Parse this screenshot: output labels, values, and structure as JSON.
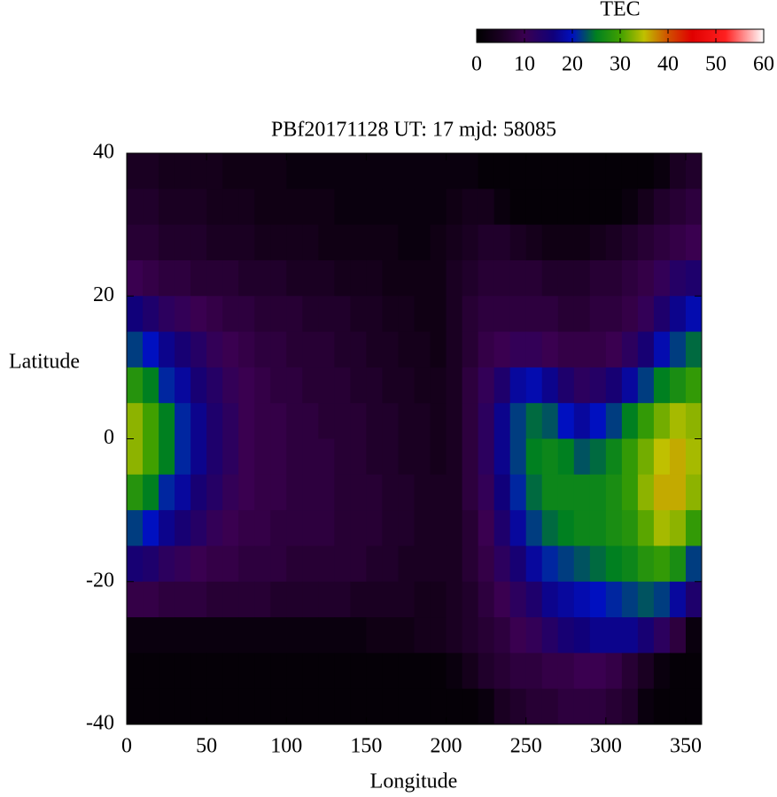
{
  "chart_data": {
    "type": "heatmap",
    "title": "PBf20171128  UT: 17  mjd: 58085",
    "x_label": "Longitude",
    "y_label": "Latitude",
    "colorbar_label": "TEC",
    "xlim": [
      0,
      360
    ],
    "xticks": [
      0,
      50,
      100,
      150,
      200,
      250,
      300,
      350
    ],
    "ylim": [
      -40,
      40
    ],
    "yticks": [
      -40,
      -20,
      0,
      20,
      40
    ],
    "clim": [
      0,
      60
    ],
    "cticks": [
      0,
      10,
      20,
      30,
      40,
      50,
      60
    ],
    "colormap": [
      [
        0,
        "#000000"
      ],
      [
        5,
        "#1a0022"
      ],
      [
        10,
        "#3a0050"
      ],
      [
        16,
        "#10007a"
      ],
      [
        20,
        "#0010c0"
      ],
      [
        25,
        "#008020"
      ],
      [
        30,
        "#40a000"
      ],
      [
        35,
        "#c0c000"
      ],
      [
        40,
        "#d05000"
      ],
      [
        45,
        "#e00000"
      ],
      [
        52,
        "#ff2020"
      ],
      [
        60,
        "#ffffff"
      ]
    ],
    "x": [
      5,
      15,
      25,
      35,
      45,
      55,
      65,
      75,
      85,
      95,
      105,
      115,
      125,
      135,
      145,
      155,
      165,
      175,
      185,
      195,
      205,
      215,
      225,
      235,
      245,
      255,
      265,
      275,
      285,
      295,
      305,
      315,
      325,
      335,
      345,
      355
    ],
    "y": [
      37.5,
      32.5,
      27.5,
      22.5,
      17.5,
      12.5,
      7.5,
      2.5,
      -2.5,
      -7.5,
      -12.5,
      -17.5,
      -22.5,
      -27.5,
      -32.5,
      -37.5
    ],
    "z": [
      [
        5,
        5,
        4,
        4,
        4,
        4,
        3,
        3,
        3,
        3,
        2,
        2,
        2,
        2,
        2,
        2,
        2,
        2,
        2,
        2,
        2,
        2,
        1,
        1,
        1,
        1,
        1,
        1,
        1,
        1,
        1,
        1,
        1,
        2,
        5,
        6
      ],
      [
        6,
        6,
        5,
        5,
        5,
        4,
        4,
        4,
        3,
        3,
        3,
        3,
        3,
        2,
        2,
        2,
        2,
        2,
        2,
        2,
        3,
        4,
        4,
        2,
        1,
        1,
        1,
        1,
        1,
        1,
        1,
        2,
        4,
        6,
        7,
        8
      ],
      [
        7,
        7,
        6,
        6,
        6,
        5,
        5,
        5,
        4,
        4,
        4,
        4,
        3,
        3,
        3,
        3,
        3,
        2,
        2,
        3,
        4,
        5,
        6,
        6,
        5,
        4,
        3,
        3,
        3,
        4,
        5,
        6,
        7,
        8,
        9,
        10
      ],
      [
        10,
        9,
        8,
        8,
        7,
        7,
        7,
        6,
        6,
        6,
        5,
        5,
        5,
        4,
        4,
        4,
        3,
        3,
        3,
        3,
        5,
        6,
        7,
        7,
        7,
        7,
        6,
        6,
        6,
        7,
        7,
        8,
        9,
        11,
        13,
        14
      ],
      [
        16,
        14,
        12,
        11,
        10,
        9,
        8,
        8,
        7,
        7,
        7,
        6,
        6,
        6,
        5,
        5,
        4,
        4,
        3,
        3,
        5,
        7,
        8,
        8,
        8,
        8,
        8,
        7,
        7,
        8,
        8,
        9,
        11,
        14,
        17,
        19
      ],
      [
        22,
        20,
        17,
        15,
        13,
        11,
        10,
        9,
        8,
        8,
        7,
        7,
        7,
        6,
        6,
        5,
        5,
        4,
        4,
        3,
        5,
        7,
        9,
        10,
        11,
        11,
        10,
        9,
        9,
        9,
        10,
        12,
        15,
        19,
        22,
        24
      ],
      [
        28,
        25,
        21,
        18,
        15,
        13,
        11,
        10,
        9,
        8,
        8,
        7,
        7,
        7,
        6,
        6,
        5,
        5,
        4,
        4,
        5,
        8,
        11,
        14,
        18,
        19,
        17,
        14,
        12,
        13,
        15,
        18,
        22,
        25,
        27,
        29
      ],
      [
        33,
        30,
        25,
        21,
        17,
        14,
        12,
        10,
        9,
        9,
        8,
        8,
        7,
        7,
        7,
        6,
        6,
        5,
        5,
        4,
        5,
        8,
        12,
        17,
        22,
        24,
        23,
        20,
        18,
        20,
        22,
        25,
        29,
        32,
        34,
        33
      ],
      [
        33,
        30,
        25,
        21,
        17,
        14,
        12,
        10,
        9,
        9,
        8,
        8,
        8,
        7,
        7,
        6,
        6,
        5,
        5,
        4,
        5,
        8,
        12,
        17,
        22,
        25,
        26,
        25,
        23,
        24,
        26,
        29,
        32,
        35,
        36,
        34
      ],
      [
        28,
        25,
        21,
        18,
        15,
        13,
        11,
        10,
        9,
        9,
        8,
        8,
        8,
        7,
        7,
        7,
        6,
        6,
        5,
        5,
        5,
        8,
        11,
        16,
        21,
        24,
        26,
        26,
        26,
        26,
        27,
        29,
        33,
        36,
        36,
        33
      ],
      [
        22,
        20,
        17,
        15,
        13,
        11,
        10,
        9,
        9,
        8,
        8,
        8,
        8,
        7,
        7,
        7,
        6,
        6,
        5,
        5,
        5,
        7,
        10,
        14,
        18,
        22,
        24,
        25,
        26,
        26,
        27,
        28,
        31,
        34,
        33,
        29
      ],
      [
        15,
        14,
        12,
        11,
        10,
        9,
        9,
        8,
        8,
        8,
        7,
        7,
        7,
        7,
        7,
        6,
        6,
        5,
        5,
        5,
        5,
        7,
        9,
        12,
        15,
        18,
        21,
        22,
        23,
        24,
        25,
        26,
        28,
        29,
        27,
        22
      ],
      [
        9,
        9,
        8,
        8,
        8,
        7,
        7,
        7,
        7,
        6,
        6,
        6,
        6,
        6,
        5,
        5,
        5,
        5,
        4,
        4,
        5,
        6,
        8,
        10,
        12,
        14,
        17,
        18,
        19,
        20,
        21,
        22,
        23,
        22,
        18,
        14
      ],
      [
        2,
        2,
        2,
        2,
        2,
        2,
        2,
        2,
        2,
        2,
        2,
        2,
        2,
        2,
        2,
        3,
        3,
        3,
        4,
        4,
        5,
        6,
        7,
        8,
        10,
        11,
        13,
        15,
        16,
        17,
        17,
        17,
        15,
        12,
        8,
        2
      ],
      [
        1,
        1,
        1,
        1,
        1,
        1,
        1,
        1,
        1,
        1,
        1,
        1,
        1,
        1,
        1,
        1,
        1,
        1,
        1,
        1,
        2,
        4,
        6,
        7,
        8,
        8,
        9,
        9,
        10,
        10,
        9,
        7,
        5,
        2,
        1,
        1
      ],
      [
        1,
        1,
        1,
        1,
        1,
        1,
        1,
        1,
        1,
        1,
        1,
        1,
        1,
        1,
        1,
        1,
        1,
        1,
        1,
        1,
        1,
        1,
        2,
        5,
        6,
        7,
        7,
        8,
        8,
        8,
        7,
        6,
        2,
        1,
        1,
        1
      ]
    ]
  }
}
